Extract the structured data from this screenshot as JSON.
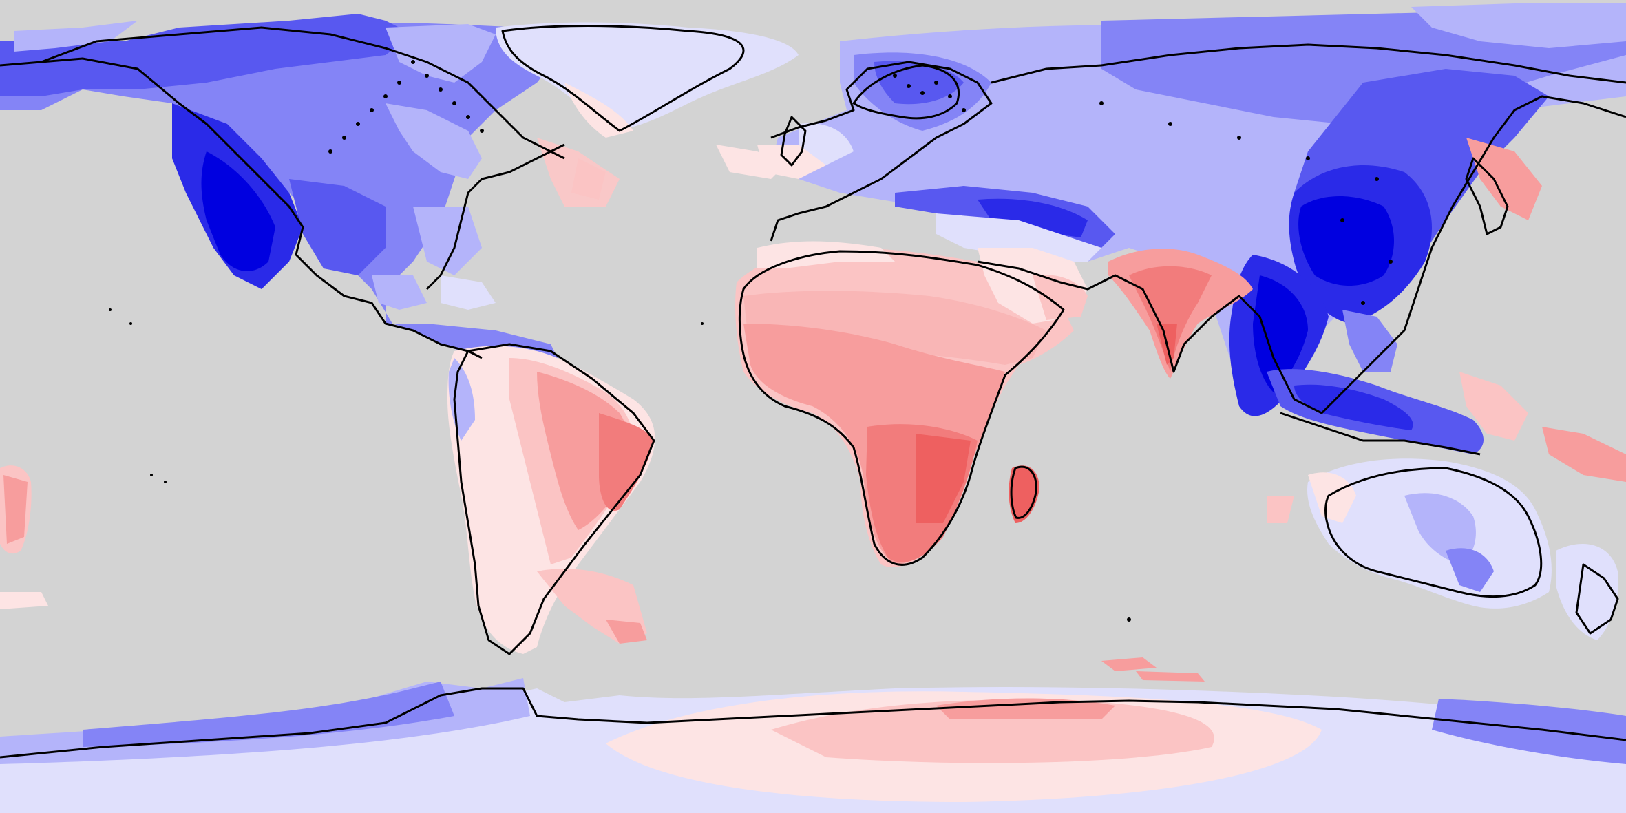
{
  "map": {
    "projection": "equirectangular",
    "extent": {
      "lon": [
        -180,
        180
      ],
      "lat": [
        -90,
        90
      ]
    },
    "background_color": "#d3d3d3",
    "coastline_color": "#000000",
    "palette": {
      "blue_6": "#0000e0",
      "blue_5": "#2a2ae8",
      "blue_4": "#5858f0",
      "blue_3": "#8484f6",
      "blue_2": "#b4b4fa",
      "blue_1": "#e0e0fc",
      "red_1": "#fde4e4",
      "red_2": "#fbc4c4",
      "red_3": "#f79d9d",
      "red_4": "#f27c7c",
      "red_5": "#ee6060"
    }
  }
}
